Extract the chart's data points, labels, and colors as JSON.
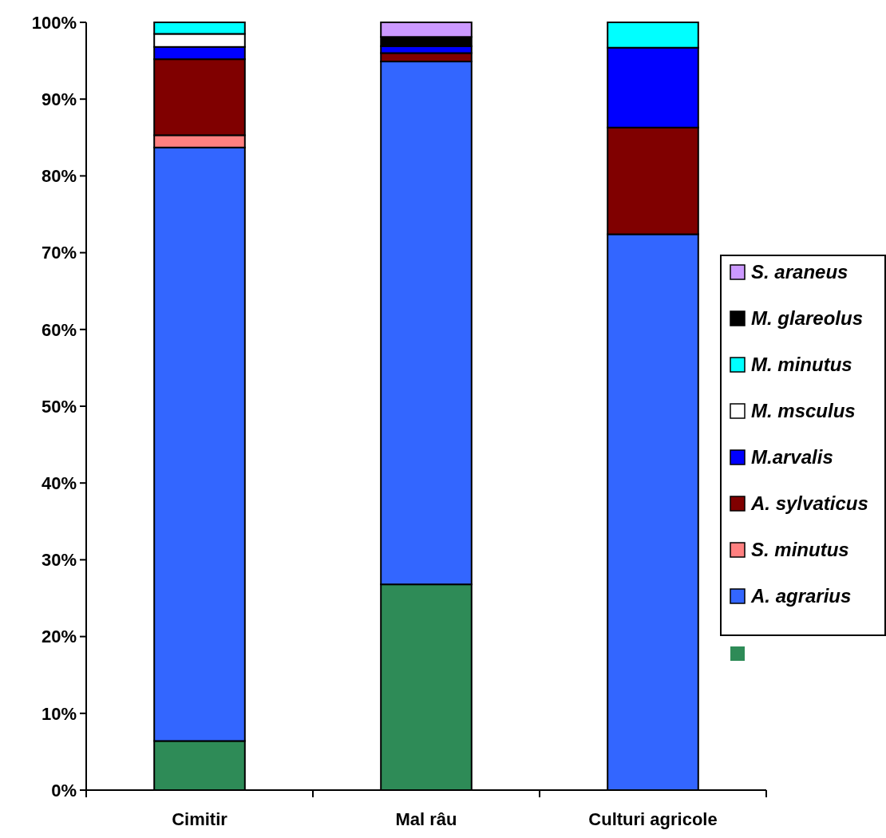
{
  "chart_data": {
    "type": "bar",
    "stacked": true,
    "categories": [
      "Cimitir",
      "Mal râu",
      "Culturi agricole"
    ],
    "ylim": [
      0,
      100
    ],
    "yticks": [
      {
        "value": 0,
        "label": "0%"
      },
      {
        "value": 10,
        "label": "10%"
      },
      {
        "value": 20,
        "label": "20%"
      },
      {
        "value": 30,
        "label": "30%"
      },
      {
        "value": 40,
        "label": "40%"
      },
      {
        "value": 50,
        "label": "50%"
      },
      {
        "value": 60,
        "label": "60%"
      },
      {
        "value": 70,
        "label": "70%"
      },
      {
        "value": 80,
        "label": "80%"
      },
      {
        "value": 90,
        "label": "90%"
      },
      {
        "value": 100,
        "label": "100%"
      }
    ],
    "legend": "right",
    "grid": false,
    "series": [
      {
        "color": "#2e8b57",
        "values": [
          6.4,
          26.8,
          0
        ]
      },
      {
        "name": "A. agrarius",
        "color": "#3366ff",
        "values": [
          77.3,
          68.1,
          72.4
        ]
      },
      {
        "name": "S. minutus",
        "color": "#ff8080",
        "values": [
          1.6,
          0,
          0
        ]
      },
      {
        "name": "A. sylvaticus",
        "color": "#800000",
        "values": [
          9.9,
          1.1,
          13.9
        ]
      },
      {
        "name": "M.arvalis",
        "color": "#0000ff",
        "values": [
          1.6,
          0.9,
          10.4
        ]
      },
      {
        "name": "M. msculus",
        "color": "#ffffff",
        "values": [
          1.7,
          0,
          0
        ]
      },
      {
        "name": "M. minutus",
        "color": "#00ffff",
        "values": [
          1.5,
          0,
          3.3
        ]
      },
      {
        "name": "M. glareolus",
        "color": "#000000",
        "values": [
          0,
          1.2,
          0
        ]
      },
      {
        "name": "S. araneus",
        "color": "#cc99ff",
        "values": [
          0,
          1.9,
          0
        ]
      }
    ]
  }
}
